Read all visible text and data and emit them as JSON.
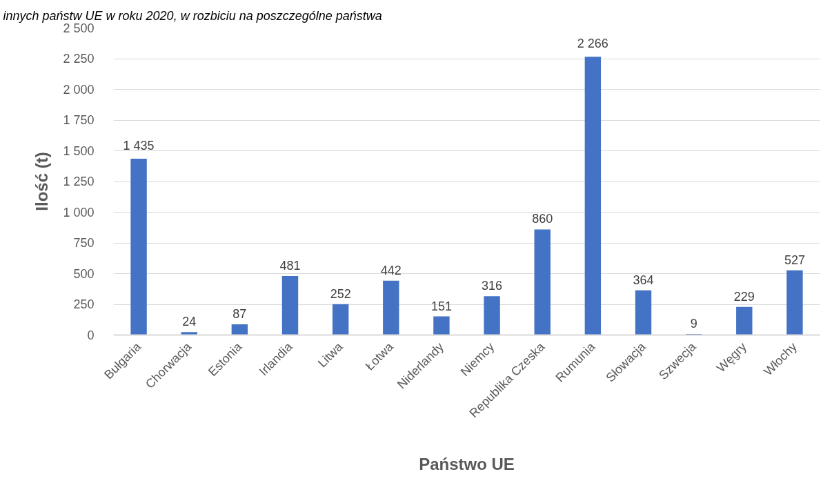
{
  "chart_data": {
    "type": "bar",
    "title": "innych państw UE w roku 2020, w rozbiciu na poszczególne państwa",
    "xlabel": "Państwo UE",
    "ylabel": "Ilość (t)",
    "categories": [
      "Bułgaria",
      "Chorwacja",
      "Estonia",
      "Irlandia",
      "Litwa",
      "Łotwa",
      "Niderlandy",
      "Niemcy",
      "Republika Czeska",
      "Rumunia",
      "Słowacja",
      "Szwecja",
      "Węgry",
      "Włochy"
    ],
    "values": [
      1435,
      24,
      87,
      481,
      252,
      442,
      151,
      316,
      860,
      2266,
      364,
      9,
      229,
      527
    ],
    "value_labels": [
      "1 435",
      "24",
      "87",
      "481",
      "252",
      "442",
      "151",
      "316",
      "860",
      "2 266",
      "364",
      "9",
      "229",
      "527"
    ],
    "color": "#4472c4",
    "ylim": [
      0,
      2500
    ],
    "yticks": [
      0,
      250,
      500,
      750,
      {
        "value": 1000,
        "label": "1 000"
      },
      {
        "value": 1250,
        "label": "1 250"
      },
      {
        "value": 1500,
        "label": "1 500"
      },
      {
        "value": 1750,
        "label": "1 750"
      },
      {
        "value": 2000,
        "label": "2 000"
      },
      {
        "value": 2250,
        "label": "2 250"
      },
      {
        "value": 2500,
        "label": "2 500"
      }
    ],
    "grid": "y"
  }
}
